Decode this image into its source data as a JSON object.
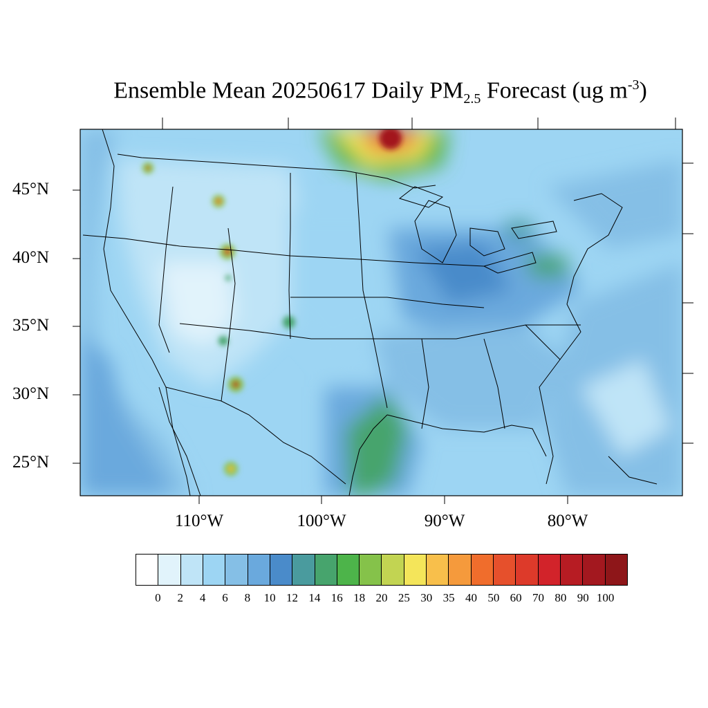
{
  "title": {
    "prefix": "Ensemble Mean 20250617 Daily PM",
    "sub": "2.5",
    "middle": " Forecast (ug m",
    "sup": "-3",
    "suffix": ")"
  },
  "lat_labels": [
    "45°N",
    "40°N",
    "35°N",
    "30°N",
    "25°N"
  ],
  "lon_labels": [
    "110°W",
    "100°W",
    "90°W",
    "80°W"
  ],
  "colorbar": {
    "labels": [
      "0",
      "2",
      "4",
      "6",
      "8",
      "10",
      "12",
      "14",
      "16",
      "18",
      "20",
      "25",
      "30",
      "35",
      "40",
      "50",
      "60",
      "70",
      "80",
      "90",
      "100"
    ],
    "colors": [
      "#ffffff",
      "#e1f3fb",
      "#bfe4f7",
      "#9dd5f3",
      "#85bfe6",
      "#6aa9dd",
      "#4a8bca",
      "#4a9b9e",
      "#47a46d",
      "#4db44a",
      "#85c24a",
      "#c2d452",
      "#f4e55a",
      "#f8bf4b",
      "#f59a3c",
      "#f06d2c",
      "#e6502c",
      "#dd3a2a",
      "#d2232a",
      "#b71c23",
      "#a3181f",
      "#8e1619"
    ]
  }
}
